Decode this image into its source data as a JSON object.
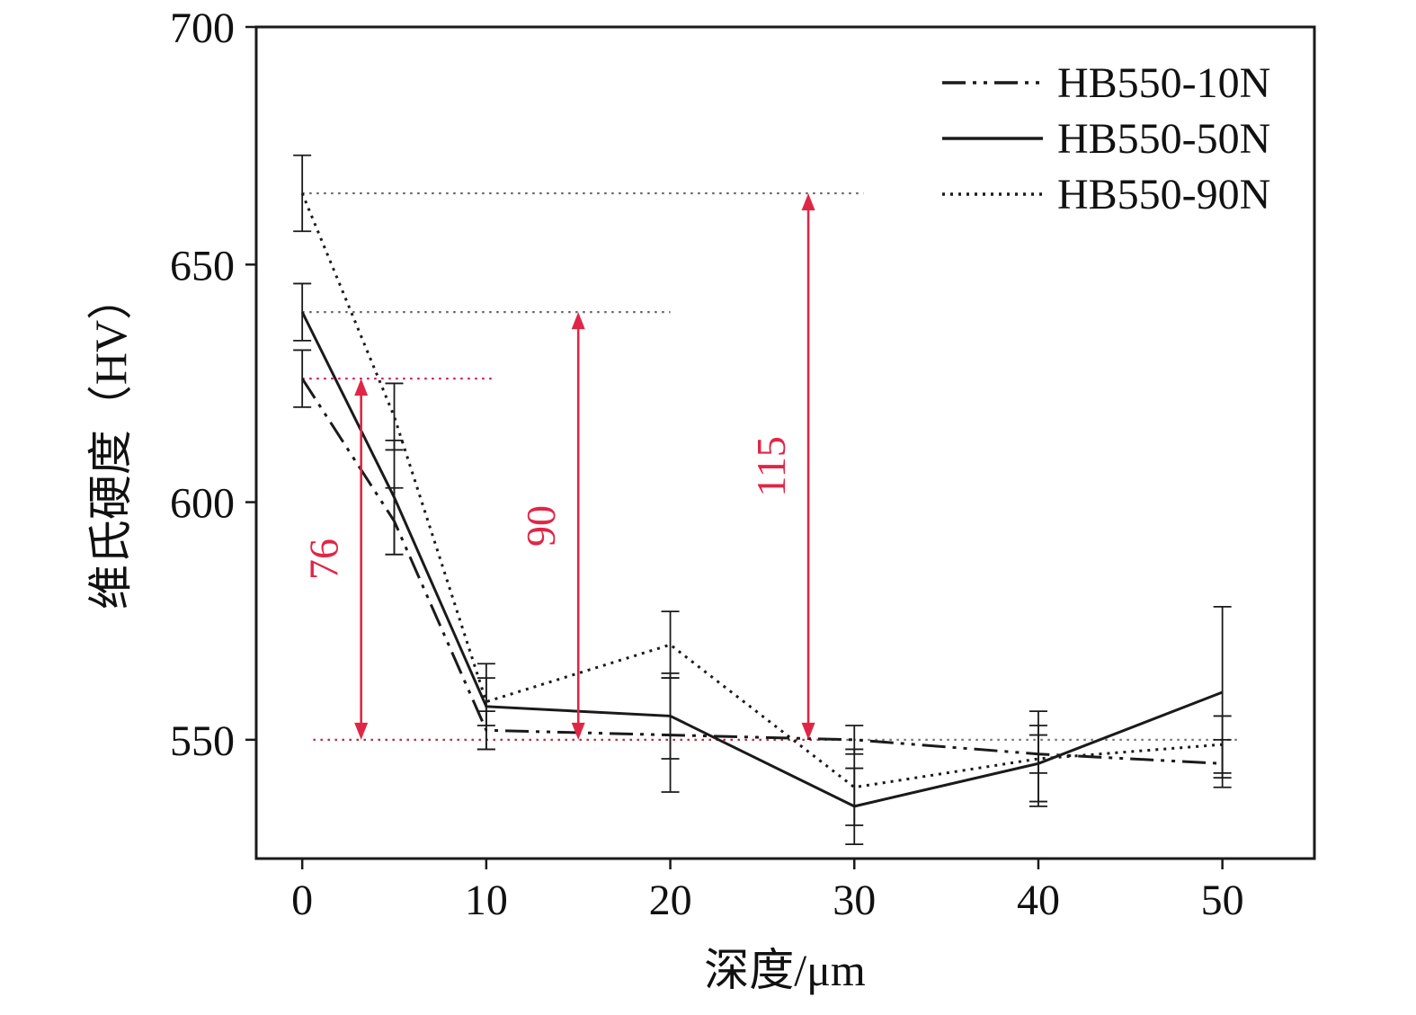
{
  "figure": {
    "background": "#ffffff"
  },
  "chart_data": {
    "type": "line",
    "title": "",
    "xlabel": "深度/μm",
    "ylabel": "维氏硬度（HV）",
    "x": [
      0,
      5,
      10,
      20,
      30,
      40,
      50
    ],
    "xlim": [
      -2.5,
      55
    ],
    "ylim": [
      525,
      700
    ],
    "xticks": [
      0,
      10,
      20,
      30,
      40,
      50
    ],
    "yticks": [
      550,
      600,
      650,
      700
    ],
    "grid": false,
    "legend_position": "top-right-inside",
    "axis_color": "#1a1a1a",
    "series": [
      {
        "name": "HB550-10N",
        "style": "dashdot",
        "color": "#1a1a1a",
        "values": [
          626,
          596,
          552,
          551,
          550,
          547,
          545
        ],
        "errors": [
          6,
          7,
          4,
          12,
          3,
          4,
          5
        ]
      },
      {
        "name": "HB550-50N",
        "style": "solid",
        "color": "#1a1a1a",
        "values": [
          640,
          601,
          557,
          555,
          536,
          545,
          560
        ],
        "errors": [
          6,
          12,
          9,
          9,
          8,
          8,
          18
        ]
      },
      {
        "name": "HB550-90N",
        "style": "dotted",
        "color": "#1a1a1a",
        "values": [
          665,
          618,
          558,
          570,
          540,
          546,
          549
        ],
        "errors": [
          8,
          7,
          5,
          7,
          8,
          10,
          6
        ]
      }
    ],
    "reference_lines": [
      {
        "y": 665,
        "x1": 0,
        "x2": 30.5,
        "color": "#666666"
      },
      {
        "y": 640,
        "x1": 0,
        "x2": 20.0,
        "color": "#666666"
      },
      {
        "y": 626,
        "x1": 0,
        "x2": 10.3,
        "color": "#d81b53"
      },
      {
        "y": 550,
        "x1": 0.6,
        "x2": 28.0,
        "color": "#b03040"
      },
      {
        "y": 550,
        "x1": 28.0,
        "x2": 50.8,
        "color": "#777777"
      }
    ],
    "annotations": [
      {
        "x": 3.2,
        "y_from": 550,
        "y_to": 626,
        "label": "76",
        "color": "#e02646"
      },
      {
        "x": 15.0,
        "y_from": 550,
        "y_to": 640,
        "label": "90",
        "color": "#e02646"
      },
      {
        "x": 27.5,
        "y_from": 550,
        "y_to": 665,
        "label": "115",
        "color": "#e02646"
      }
    ]
  }
}
